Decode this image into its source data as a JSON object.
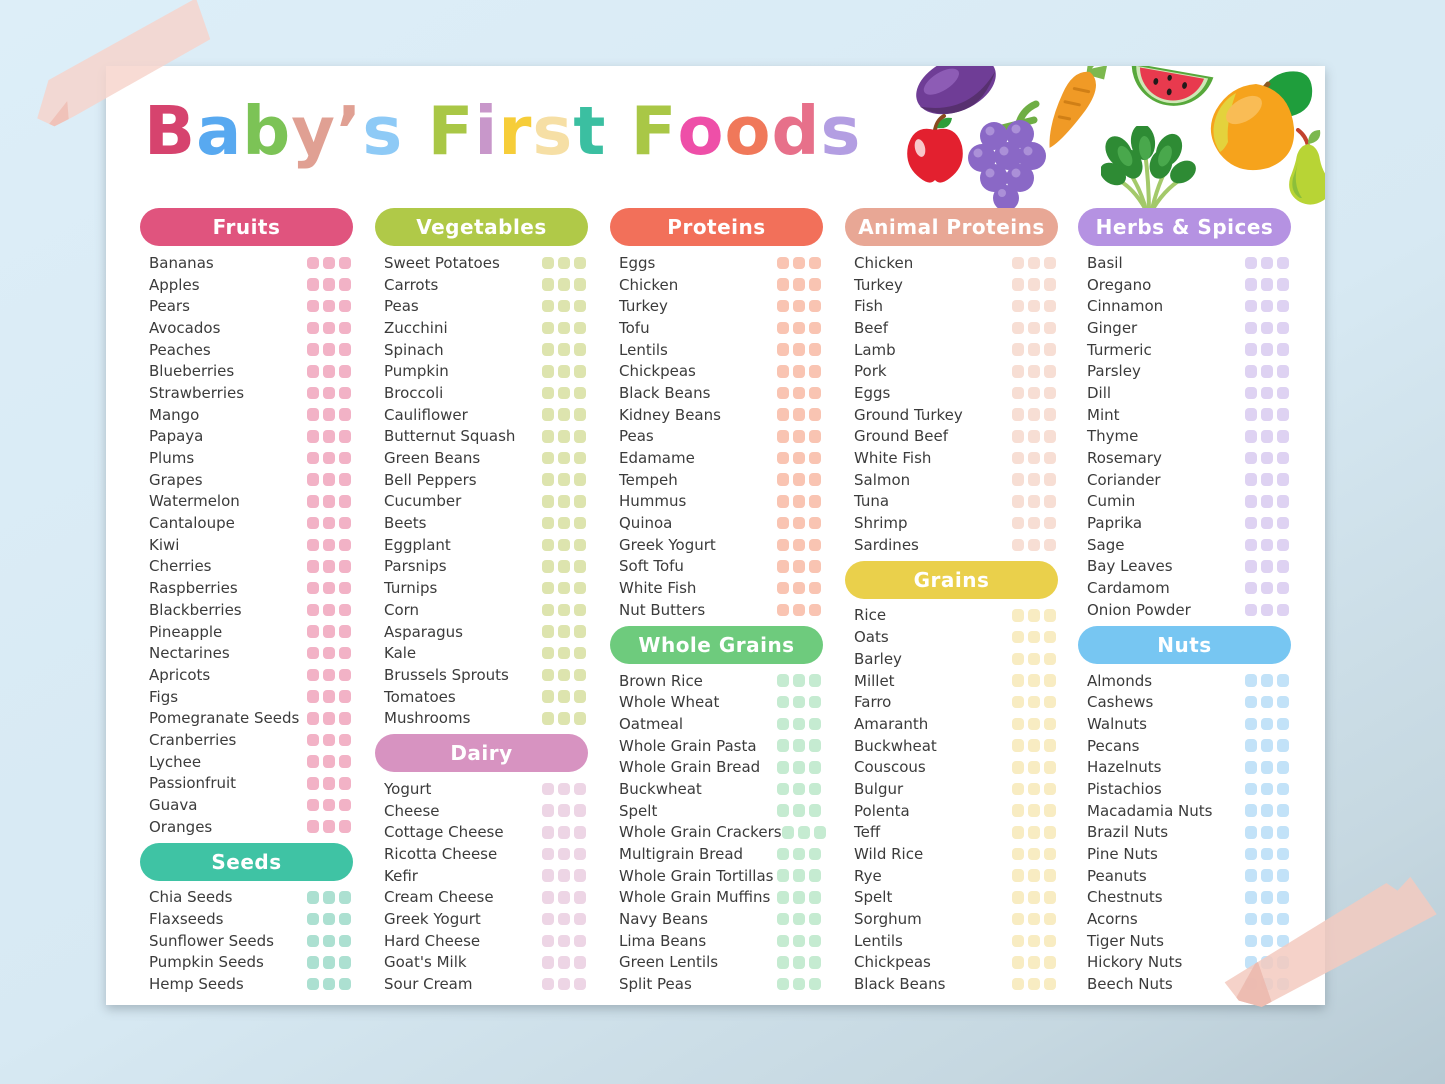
{
  "page_title": "Baby's First Foods",
  "title_letters": [
    {
      "char": "B",
      "color": "#d6436e"
    },
    {
      "char": "a",
      "color": "#58a9f0"
    },
    {
      "char": "b",
      "color": "#7cc356"
    },
    {
      "char": "y",
      "color": "#e0a093"
    },
    {
      "char": "’",
      "color": "#e0a093"
    },
    {
      "char": "s",
      "color": "#8ecaf6"
    },
    {
      "char": " "
    },
    {
      "char": "F",
      "color": "#a9c746"
    },
    {
      "char": "i",
      "color": "#c897ca"
    },
    {
      "char": "r",
      "color": "#f6cd39"
    },
    {
      "char": "s",
      "color": "#f6dfa5"
    },
    {
      "char": "t",
      "color": "#3bbfa1"
    },
    {
      "char": " "
    },
    {
      "char": "F",
      "color": "#a9c746"
    },
    {
      "char": "o",
      "color": "#ee4fa8"
    },
    {
      "char": "o",
      "color": "#f0785a"
    },
    {
      "char": "d",
      "color": "#e7708a"
    },
    {
      "char": "s",
      "color": "#b39ee2"
    }
  ],
  "decor_icons": [
    "eggplant-icon",
    "carrot-icon",
    "watermelon-icon",
    "mango-icon",
    "apple-icon",
    "grapes-icon",
    "leafy-greens-icon",
    "pear-icon",
    "washi-tape"
  ],
  "checks_per_item": 3,
  "sections": [
    {
      "id": "fruits",
      "label": "Fruits",
      "column": 1,
      "header_color": "#e0547e",
      "check_color": "#f2b2c6",
      "items": [
        "Bananas",
        "Apples",
        "Pears",
        "Avocados",
        "Peaches",
        "Blueberries",
        "Strawberries",
        "Mango",
        "Papaya",
        "Plums",
        "Grapes",
        "Watermelon",
        "Cantaloupe",
        "Kiwi",
        "Cherries",
        "Raspberries",
        "Blackberries",
        "Pineapple",
        "Nectarines",
        "Apricots",
        "Figs",
        "Pomegranate Seeds",
        "Cranberries",
        "Lychee",
        "Passionfruit",
        "Guava",
        "Oranges"
      ]
    },
    {
      "id": "seeds",
      "label": "Seeds",
      "column": 1,
      "header_color": "#3fc3a4",
      "check_color": "#ace0d1",
      "items": [
        "Chia Seeds",
        "Flaxseeds",
        "Sunflower Seeds",
        "Pumpkin Seeds",
        "Hemp Seeds"
      ]
    },
    {
      "id": "vegetables",
      "label": "Vegetables",
      "column": 2,
      "header_color": "#b0c948",
      "check_color": "#dde4ae",
      "items": [
        "Sweet Potatoes",
        "Carrots",
        "Peas",
        "Zucchini",
        "Spinach",
        "Pumpkin",
        "Broccoli",
        "Cauliflower",
        "Butternut Squash",
        "Green Beans",
        "Bell Peppers",
        "Cucumber",
        "Beets",
        "Eggplant",
        "Parsnips",
        "Turnips",
        "Corn",
        "Asparagus",
        "Kale",
        "Brussels Sprouts",
        "Tomatoes",
        "Mushrooms"
      ]
    },
    {
      "id": "dairy",
      "label": "Dairy",
      "column": 2,
      "header_color": "#d793c1",
      "check_color": "#edd5e5",
      "items": [
        "Yogurt",
        "Cheese",
        "Cottage Cheese",
        "Ricotta Cheese",
        "Kefir",
        "Cream Cheese",
        "Greek Yogurt",
        "Hard Cheese",
        "Goat's Milk",
        "Sour Cream"
      ]
    },
    {
      "id": "proteins",
      "label": "Proteins",
      "column": 3,
      "header_color": "#f2705a",
      "check_color": "#f9c4b2",
      "items": [
        "Eggs",
        "Chicken",
        "Turkey",
        "Tofu",
        "Lentils",
        "Chickpeas",
        "Black Beans",
        "Kidney Beans",
        "Peas",
        "Edamame",
        "Tempeh",
        "Hummus",
        "Quinoa",
        "Greek Yogurt",
        "Soft Tofu",
        "White Fish",
        "Nut Butters"
      ]
    },
    {
      "id": "whole-grains",
      "label": "Whole Grains",
      "column": 3,
      "header_color": "#6ecb7d",
      "check_color": "#c5ebd1",
      "items": [
        "Brown Rice",
        "Whole Wheat",
        "Oatmeal",
        "Whole Grain Pasta",
        "Whole Grain Bread",
        "Buckwheat",
        "Spelt",
        "Whole Grain Crackers",
        "Multigrain Bread",
        "Whole Grain Tortillas",
        "Whole Grain Muffins",
        "Navy Beans",
        "Lima Beans",
        "Green Lentils",
        "Split Peas"
      ]
    },
    {
      "id": "animal-proteins",
      "label": "Animal Proteins",
      "column": 4,
      "header_color": "#e8a795",
      "check_color": "#f7ded4",
      "items": [
        "Chicken",
        "Turkey",
        "Fish",
        "Beef",
        "Lamb",
        "Pork",
        "Eggs",
        "Ground Turkey",
        "Ground Beef",
        "White Fish",
        "Salmon",
        "Tuna",
        "Shrimp",
        "Sardines"
      ]
    },
    {
      "id": "grains",
      "label": "Grains",
      "column": 4,
      "header_color": "#ead04b",
      "check_color": "#f8ecc2",
      "items": [
        "Rice",
        "Oats",
        "Barley",
        "Millet",
        "Farro",
        "Amaranth",
        "Buckwheat",
        "Couscous",
        "Bulgur",
        "Polenta",
        "Teff",
        "Wild Rice",
        "Rye",
        "Spelt",
        "Sorghum",
        "Lentils",
        "Chickpeas",
        "Black Beans"
      ]
    },
    {
      "id": "herbs-spices",
      "label": "Herbs & Spices",
      "column": 5,
      "header_color": "#b592e2",
      "check_color": "#ded2f2",
      "items": [
        "Basil",
        "Oregano",
        "Cinnamon",
        "Ginger",
        "Turmeric",
        "Parsley",
        "Dill",
        "Mint",
        "Thyme",
        "Rosemary",
        "Coriander",
        "Cumin",
        "Paprika",
        "Sage",
        "Bay Leaves",
        "Cardamom",
        "Onion Powder"
      ]
    },
    {
      "id": "nuts",
      "label": "Nuts",
      "column": 5,
      "header_color": "#77c6f2",
      "check_color": "#c2e2f8",
      "items": [
        "Almonds",
        "Cashews",
        "Walnuts",
        "Pecans",
        "Hazelnuts",
        "Pistachios",
        "Macadamia Nuts",
        "Brazil Nuts",
        "Pine Nuts",
        "Peanuts",
        "Chestnuts",
        "Acorns",
        "Tiger Nuts",
        "Hickory Nuts",
        "Beech Nuts"
      ]
    }
  ]
}
